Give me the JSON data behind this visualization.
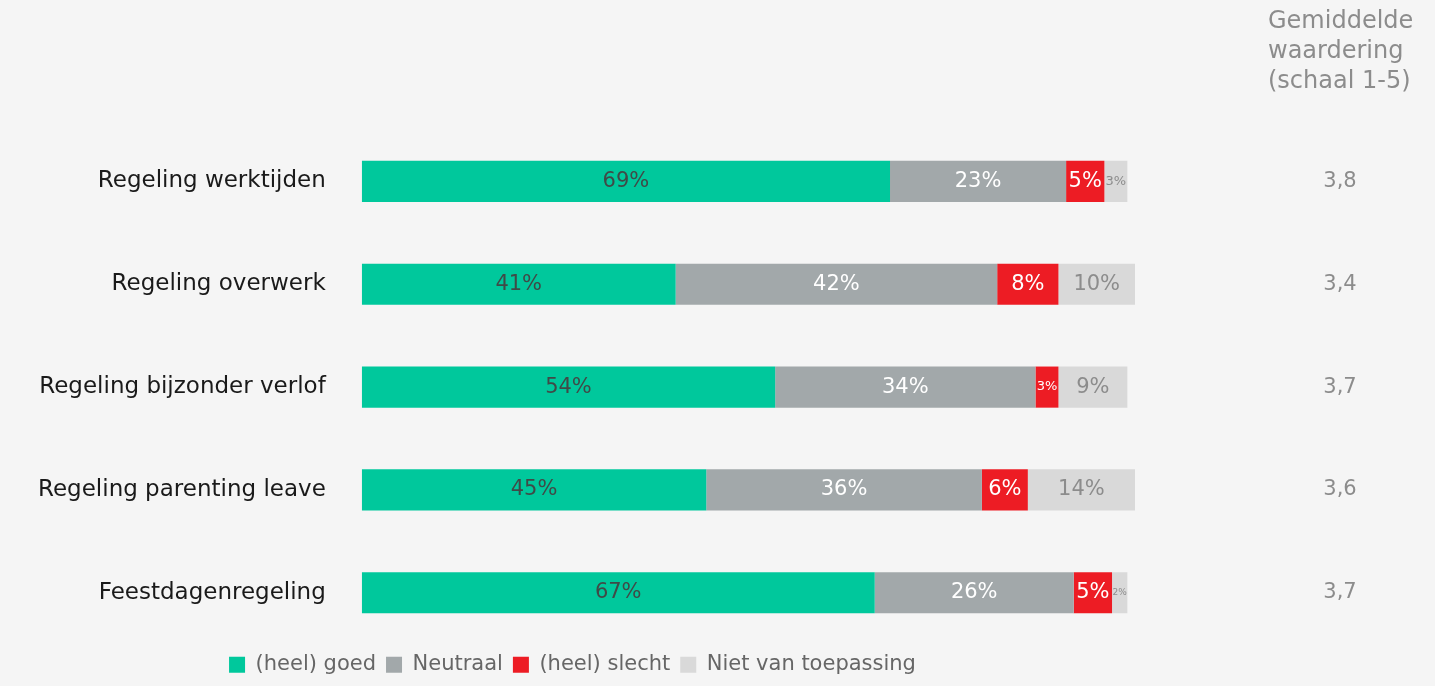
{
  "chart_data": {
    "type": "bar",
    "orientation": "horizontal",
    "stacked": true,
    "legend": "bottom",
    "categories": [
      "Regeling werktijden",
      "Regeling overwerk",
      "Regeling bijzonder verlof",
      "Regeling parenting leave",
      "Feestdagenregeling"
    ],
    "series": [
      {
        "name": "(heel) goed",
        "color": "#00c89c",
        "values": [
          69,
          41,
          54,
          45,
          67
        ],
        "value_labels": [
          "69%",
          "41%",
          "54%",
          "45%",
          "67%"
        ]
      },
      {
        "name": "Neutraal",
        "color": "#a2a8aa",
        "values": [
          23,
          42,
          34,
          36,
          26
        ],
        "value_labels": [
          "23%",
          "42%",
          "34%",
          "36%",
          "26%"
        ]
      },
      {
        "name": "(heel) slecht",
        "color": "#ed1c24",
        "values": [
          5,
          8,
          3,
          6,
          5
        ],
        "value_labels": [
          "5%",
          "8%",
          "3%",
          "6%",
          "5%"
        ]
      },
      {
        "name": "Niet van toepassing",
        "color": "#d9d9d9",
        "values": [
          3,
          10,
          9,
          14,
          2
        ],
        "value_labels": [
          "3%",
          "10%",
          "9%",
          "14%",
          "2%"
        ]
      }
    ],
    "annotations": [
      "Gemiddelde waardering (schaal 1-5)",
      "3,8",
      "3,4",
      "3,7",
      "3,6",
      "3,7"
    ]
  }
}
